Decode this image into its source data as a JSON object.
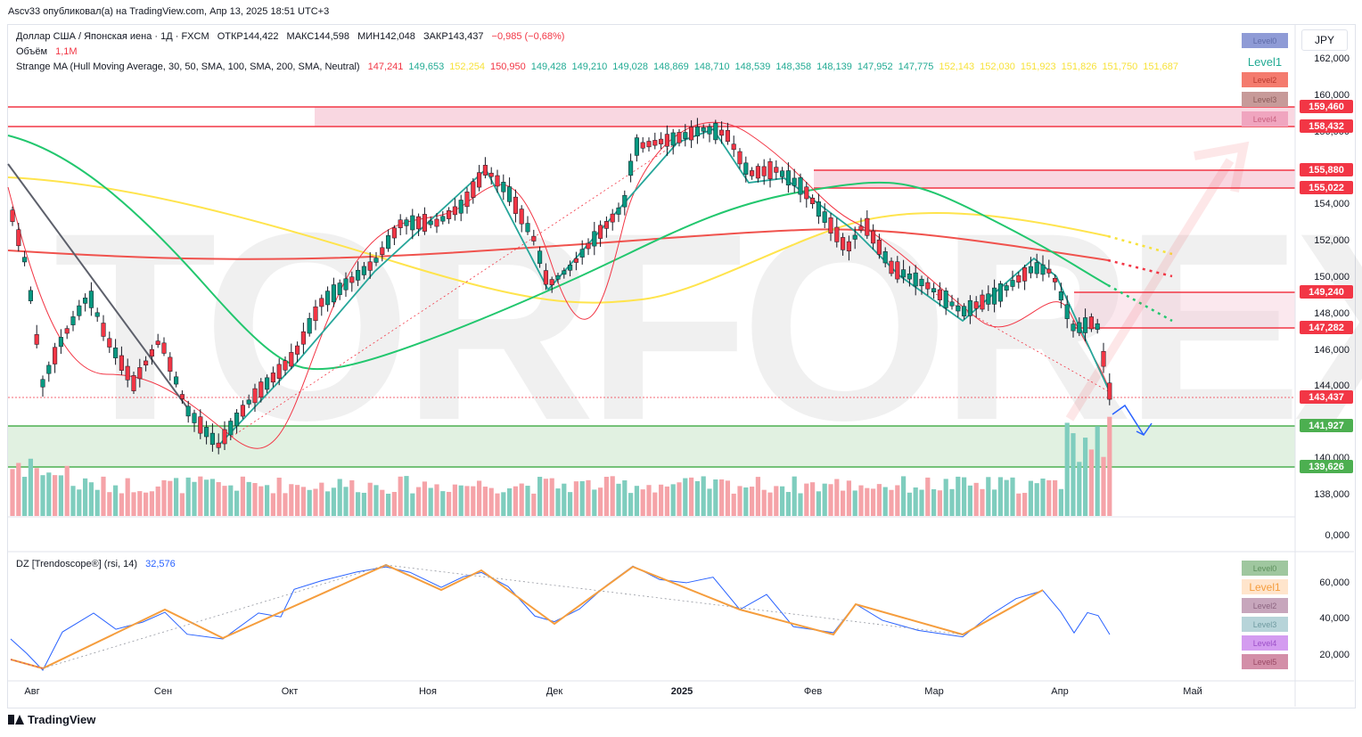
{
  "header": {
    "credit": "Ascv33 опубликовал(а) на TradingView.com, Апр 13, 2025 18:51 UTC+3"
  },
  "symbol_line": {
    "name": "Доллар США / Японская иена · 1Д · FXCM",
    "open": "ОТКР144,422",
    "high": "МАКС144,598",
    "low": "МИН142,048",
    "close": "ЗАКР143,437",
    "change": "−0,985 (−0,68%)",
    "change_color": "#f23645"
  },
  "volume_line": {
    "label": "Объём",
    "value": "1,1M",
    "value_color": "#f23645"
  },
  "indicator_line": {
    "label": "Strange MA (Hull Moving Average, 30, 50, SMA, 100, SMA, 200, SMA, Neutral)",
    "values": [
      {
        "v": "147,241",
        "c": "#f23645"
      },
      {
        "v": "149,653",
        "c": "#22ab94"
      },
      {
        "v": "152,254",
        "c": "#f7e23b"
      },
      {
        "v": "150,950",
        "c": "#f23645"
      },
      {
        "v": "149,428",
        "c": "#22ab94"
      },
      {
        "v": "149,210",
        "c": "#22ab94"
      },
      {
        "v": "149,028",
        "c": "#22ab94"
      },
      {
        "v": "148,869",
        "c": "#22ab94"
      },
      {
        "v": "148,710",
        "c": "#22ab94"
      },
      {
        "v": "148,539",
        "c": "#22ab94"
      },
      {
        "v": "148,358",
        "c": "#22ab94"
      },
      {
        "v": "148,139",
        "c": "#22ab94"
      },
      {
        "v": "147,952",
        "c": "#22ab94"
      },
      {
        "v": "147,775",
        "c": "#22ab94"
      },
      {
        "v": "152,143",
        "c": "#f7e23b"
      },
      {
        "v": "152,030",
        "c": "#f7e23b"
      },
      {
        "v": "151,923",
        "c": "#f7e23b"
      },
      {
        "v": "151,826",
        "c": "#f7e23b"
      },
      {
        "v": "151,750",
        "c": "#f7e23b"
      },
      {
        "v": "151,687",
        "c": "#f7e23b"
      }
    ]
  },
  "currency": "JPY",
  "price_axis": [
    "162,000",
    "160,000",
    "156,000",
    "154,000",
    "152,000",
    "150,000",
    "148,000",
    "146,000",
    "144,000",
    "140,000",
    "138,000",
    "0,000"
  ],
  "price_tags": [
    {
      "label": "159,460",
      "color": "#f23645"
    },
    {
      "label": "158,432",
      "color": "#f23645"
    },
    {
      "label": "155,880",
      "color": "#f23645"
    },
    {
      "label": "155,022",
      "color": "#f23645"
    },
    {
      "label": "149,240",
      "color": "#f23645"
    },
    {
      "label": "147,282",
      "color": "#f23645"
    },
    {
      "label": "143,437",
      "color": "#f23645"
    },
    {
      "label": "141,927",
      "color": "#4caf50"
    },
    {
      "label": "139,626",
      "color": "#4caf50"
    }
  ],
  "levels_main": [
    {
      "label": "Level0",
      "bg": "#8f9bd6",
      "fg": "#5e6ba8"
    },
    {
      "label": "Level1",
      "bg": "#ffffff",
      "fg": "#22ab94"
    },
    {
      "label": "Level2",
      "bg": "#f47b6e",
      "fg": "#b83a30"
    },
    {
      "label": "Level3",
      "bg": "#c79a99",
      "fg": "#8a5b5a"
    },
    {
      "label": "Level4",
      "bg": "#f0a5bf",
      "fg": "#c9607f"
    }
  ],
  "rsi": {
    "label": "DZ [Trendoscope®] (rsi, 14)",
    "value": "32,576",
    "axis": [
      "60,000",
      "40,000",
      "20,000"
    ],
    "levels": [
      {
        "label": "Level0",
        "bg": "#9fc79f",
        "fg": "#5d8f5d"
      },
      {
        "label": "Level1",
        "bg": "#ffe5cc",
        "fg": "#f59d3d"
      },
      {
        "label": "Level2",
        "bg": "#c7a6bc",
        "fg": "#8c6480"
      },
      {
        "label": "Level3",
        "bg": "#b7d4d9",
        "fg": "#6f9aa0"
      },
      {
        "label": "Level4",
        "bg": "#d49cf0",
        "fg": "#9c4fc8"
      },
      {
        "label": "Level5",
        "bg": "#d38fa8",
        "fg": "#9a4a66"
      }
    ]
  },
  "time_axis": [
    "Авг",
    "Сен",
    "Окт",
    "Ноя",
    "Дек",
    "2025",
    "Фев",
    "Мар",
    "Апр",
    "Май"
  ],
  "watermark": "TORFOREX.COM",
  "footer": {
    "brand": "TradingView"
  }
}
